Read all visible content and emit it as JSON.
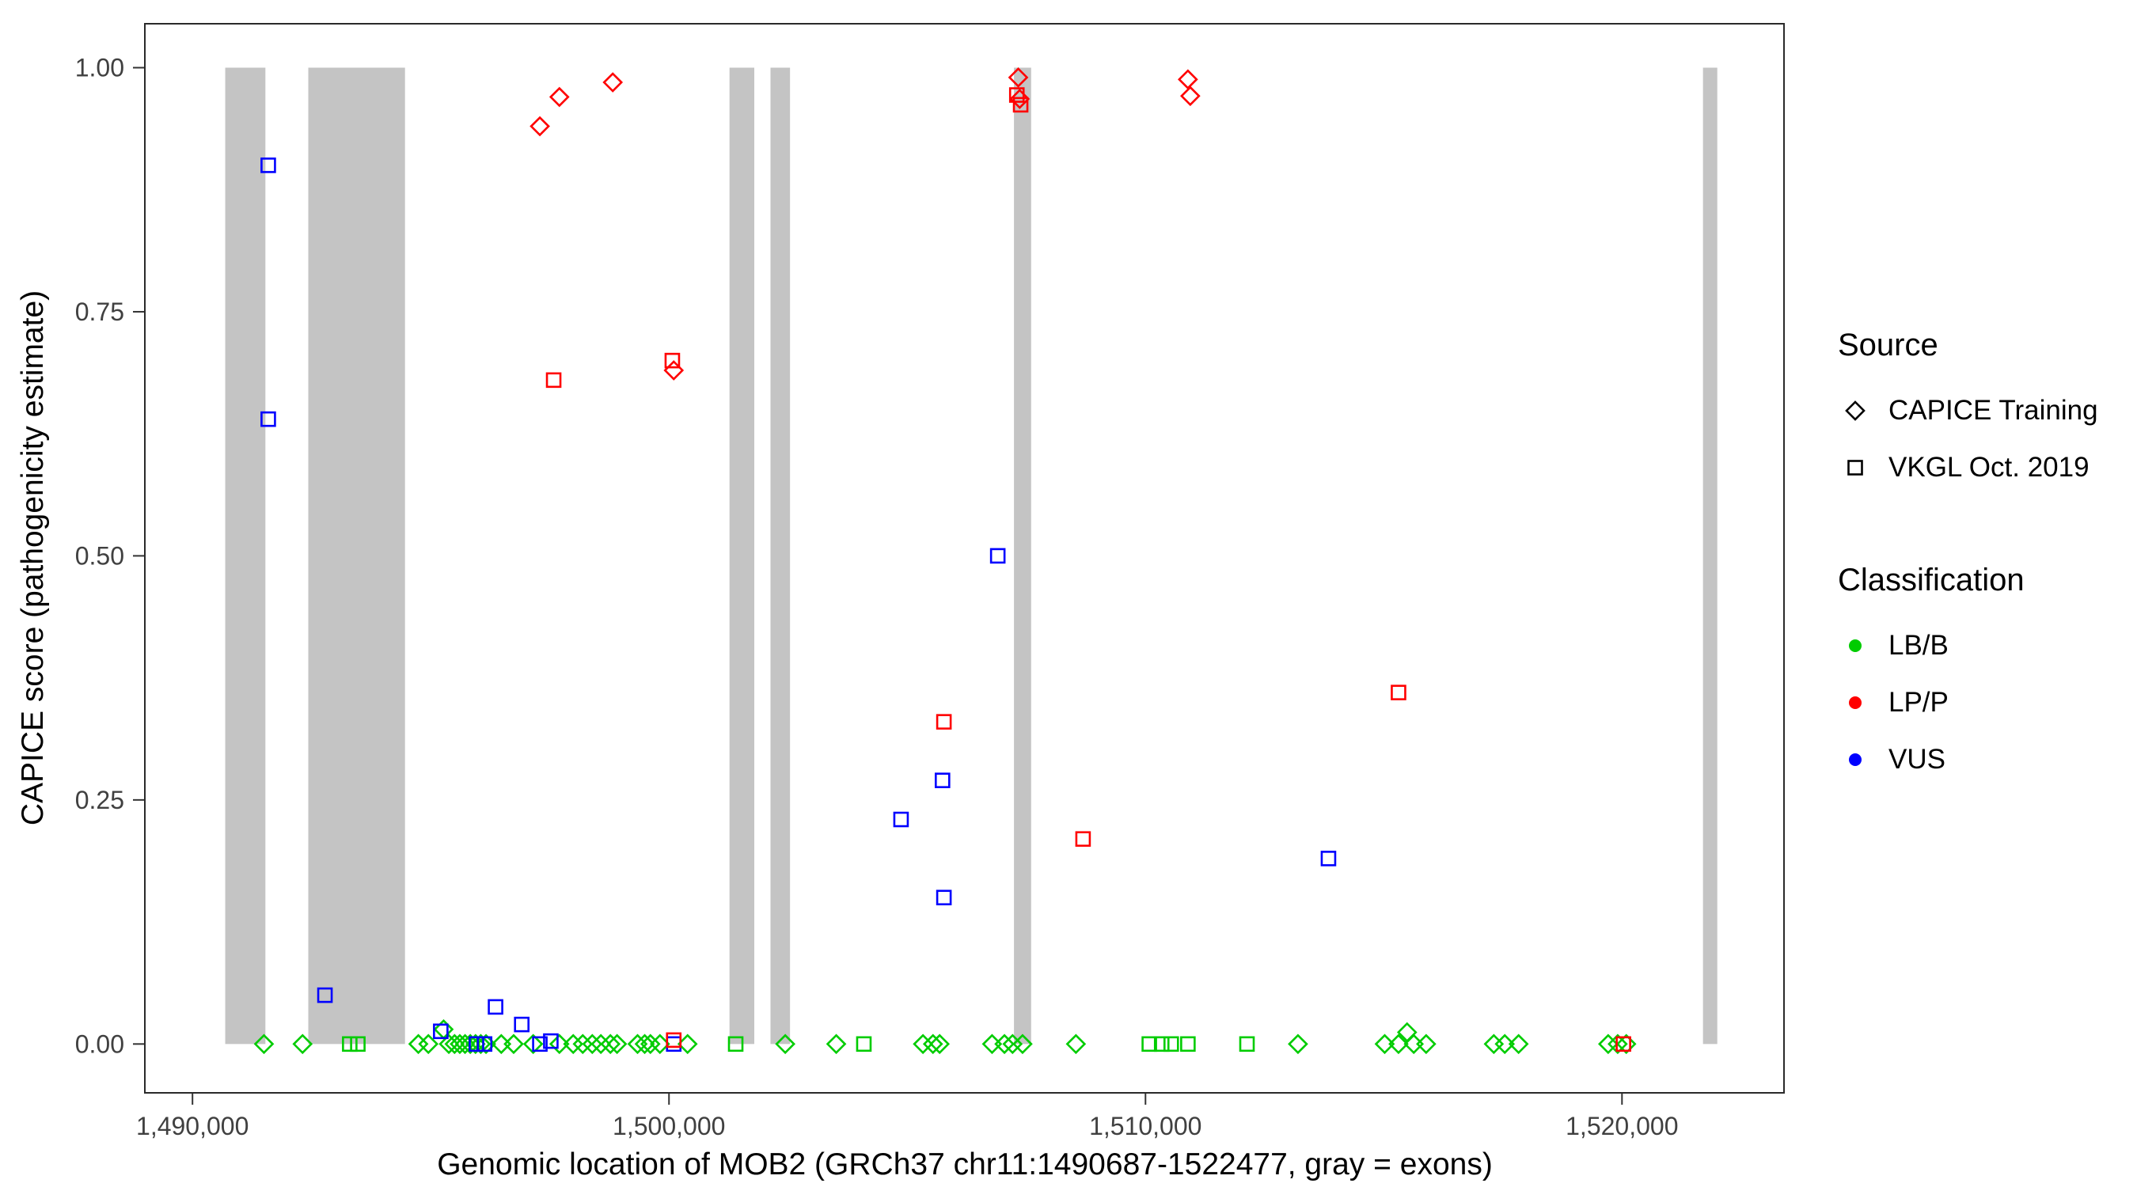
{
  "chart_data": {
    "type": "scatter",
    "title": "",
    "xlabel": "Genomic location of MOB2 (GRCh37 chr11:1490687-1522477, gray = exons)",
    "ylabel": "CAPICE score (pathogenicity estimate)",
    "xlim": [
      1489000,
      1523400
    ],
    "ylim": [
      -0.05,
      1.045
    ],
    "grid": "off",
    "x_ticks": [
      {
        "value": 1490000,
        "label": "1,490,000"
      },
      {
        "value": 1500000,
        "label": "1,500,000"
      },
      {
        "value": 1510000,
        "label": "1,510,000"
      },
      {
        "value": 1520000,
        "label": "1,520,000"
      }
    ],
    "y_ticks": [
      {
        "value": 0.0,
        "label": "0.00"
      },
      {
        "value": 0.25,
        "label": "0.25"
      },
      {
        "value": 0.5,
        "label": "0.50"
      },
      {
        "value": 0.75,
        "label": "0.75"
      },
      {
        "value": 1.0,
        "label": "1.00"
      }
    ],
    "exon_color": "#c4c4c4",
    "exons": [
      [
        1490687,
        1491530
      ],
      [
        1492430,
        1494460
      ],
      [
        1501270,
        1501790
      ],
      [
        1502130,
        1502540
      ],
      [
        1507240,
        1507600
      ],
      [
        1521700,
        1522000
      ]
    ],
    "marker": {
      "diamond_half": 11,
      "square_half": 8.5,
      "stroke_width": 2.6
    },
    "series": [
      {
        "id": "capice-lbb",
        "source": "CAPICE Training",
        "classification": "LB/B",
        "shape": "diamond",
        "color": "#00cc00",
        "points": [
          [
            1491500,
            0
          ],
          [
            1492310,
            0
          ],
          [
            1494740,
            0
          ],
          [
            1494950,
            0
          ],
          [
            1495270,
            0.015
          ],
          [
            1495380,
            0
          ],
          [
            1495500,
            0
          ],
          [
            1495610,
            0
          ],
          [
            1495720,
            0
          ],
          [
            1495830,
            0
          ],
          [
            1495940,
            0
          ],
          [
            1496050,
            0
          ],
          [
            1496160,
            0
          ],
          [
            1496480,
            0
          ],
          [
            1496740,
            0
          ],
          [
            1497150,
            0
          ],
          [
            1497700,
            0
          ],
          [
            1497990,
            0
          ],
          [
            1498190,
            0
          ],
          [
            1498390,
            0
          ],
          [
            1498570,
            0
          ],
          [
            1498770,
            0
          ],
          [
            1498910,
            0
          ],
          [
            1499340,
            0
          ],
          [
            1499490,
            0
          ],
          [
            1499610,
            0
          ],
          [
            1499810,
            0
          ],
          [
            1500390,
            0
          ],
          [
            1502440,
            0
          ],
          [
            1503510,
            0
          ],
          [
            1505330,
            0
          ],
          [
            1505540,
            0
          ],
          [
            1505680,
            0
          ],
          [
            1506780,
            0
          ],
          [
            1507040,
            0
          ],
          [
            1507210,
            0
          ],
          [
            1507420,
            0
          ],
          [
            1508540,
            0
          ],
          [
            1513200,
            0
          ],
          [
            1515020,
            0
          ],
          [
            1515310,
            0
          ],
          [
            1515490,
            0.012
          ],
          [
            1515630,
            0
          ],
          [
            1515890,
            0
          ],
          [
            1517310,
            0
          ],
          [
            1517540,
            0
          ],
          [
            1517830,
            0
          ],
          [
            1519710,
            0
          ],
          [
            1519910,
            0
          ],
          [
            1520090,
            0
          ]
        ]
      },
      {
        "id": "vkgl-lbb",
        "source": "VKGL Oct. 2019",
        "classification": "LB/B",
        "shape": "square",
        "color": "#00cc00",
        "points": [
          [
            1493300,
            0
          ],
          [
            1493470,
            0
          ],
          [
            1501400,
            0
          ],
          [
            1504090,
            0
          ],
          [
            1510080,
            0
          ],
          [
            1510340,
            0
          ],
          [
            1510540,
            0
          ],
          [
            1510890,
            0
          ],
          [
            1512130,
            0
          ]
        ]
      },
      {
        "id": "vkgl-vus",
        "source": "VKGL Oct. 2019",
        "classification": "VUS",
        "shape": "square",
        "color": "#0000ff",
        "points": [
          [
            1491590,
            0.9
          ],
          [
            1491590,
            0.64
          ],
          [
            1492780,
            0.05
          ],
          [
            1495210,
            0.013
          ],
          [
            1495960,
            0
          ],
          [
            1496130,
            0
          ],
          [
            1496360,
            0.038
          ],
          [
            1496910,
            0.02
          ],
          [
            1497290,
            0
          ],
          [
            1497520,
            0.003
          ],
          [
            1500100,
            0
          ],
          [
            1504870,
            0.23
          ],
          [
            1505740,
            0.27
          ],
          [
            1505770,
            0.15
          ],
          [
            1506900,
            0.5
          ],
          [
            1513840,
            0.19
          ]
        ]
      },
      {
        "id": "capice-lpp",
        "source": "CAPICE Training",
        "classification": "LP/P",
        "shape": "diamond",
        "color": "#ff0000",
        "points": [
          [
            1497290,
            0.94
          ],
          [
            1497700,
            0.97
          ],
          [
            1498820,
            0.985
          ],
          [
            1500100,
            0.69
          ],
          [
            1507330,
            0.99
          ],
          [
            1507360,
            0.968
          ],
          [
            1510890,
            0.988
          ],
          [
            1510940,
            0.971
          ]
        ]
      },
      {
        "id": "vkgl-lpp",
        "source": "VKGL Oct. 2019",
        "classification": "LP/P",
        "shape": "square",
        "color": "#ff0000",
        "points": [
          [
            1497580,
            0.68
          ],
          [
            1500070,
            0.7
          ],
          [
            1500100,
            0.004
          ],
          [
            1505770,
            0.33
          ],
          [
            1507300,
            0.972
          ],
          [
            1507380,
            0.962
          ],
          [
            1508690,
            0.21
          ],
          [
            1515310,
            0.36
          ],
          [
            1520030,
            0
          ]
        ]
      }
    ],
    "legend": {
      "source": {
        "title": "Source",
        "items": [
          {
            "label": "CAPICE Training",
            "shape": "diamond"
          },
          {
            "label": "VKGL Oct. 2019",
            "shape": "square"
          }
        ]
      },
      "classification": {
        "title": "Classification",
        "items": [
          {
            "label": "LB/B",
            "color": "#00cc00"
          },
          {
            "label": "LP/P",
            "color": "#ff0000"
          },
          {
            "label": "VUS",
            "color": "#0000ff"
          }
        ]
      }
    }
  }
}
